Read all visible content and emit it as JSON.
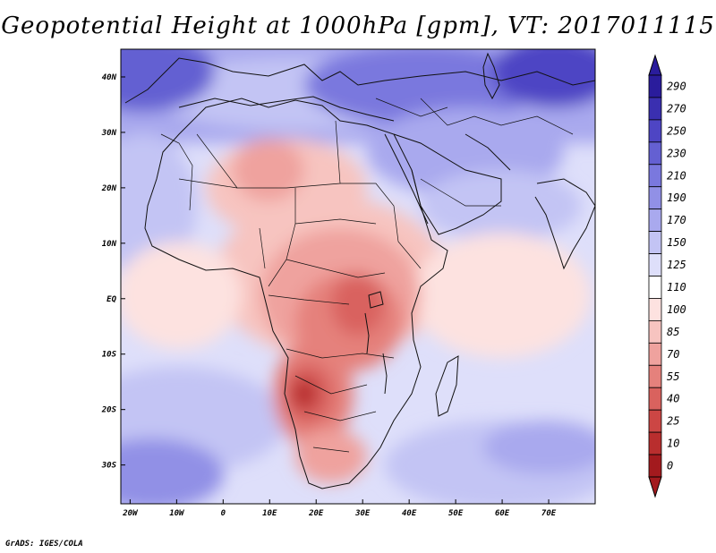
{
  "title": "Geopotential Height at 1000hPa [gpm], VT: 2017011115",
  "footer": "GrADS: IGES/COLA",
  "variable": "Geopotential Height",
  "level": "1000hPa",
  "units": "gpm",
  "valid_time": "2017011115",
  "map_extent": {
    "lon": [
      -22,
      80
    ],
    "lat": [
      -37,
      45
    ]
  },
  "lat_ticks": [
    {
      "value": 40,
      "label": "40N"
    },
    {
      "value": 30,
      "label": "30N"
    },
    {
      "value": 20,
      "label": "20N"
    },
    {
      "value": 10,
      "label": "10N"
    },
    {
      "value": 0,
      "label": "EQ"
    },
    {
      "value": -10,
      "label": "10S"
    },
    {
      "value": -20,
      "label": "20S"
    },
    {
      "value": -30,
      "label": "30S"
    }
  ],
  "lon_ticks": [
    {
      "value": -20,
      "label": "20W"
    },
    {
      "value": -10,
      "label": "10W"
    },
    {
      "value": 0,
      "label": "0"
    },
    {
      "value": 10,
      "label": "10E"
    },
    {
      "value": 20,
      "label": "20E"
    },
    {
      "value": 30,
      "label": "30E"
    },
    {
      "value": 40,
      "label": "40E"
    },
    {
      "value": 50,
      "label": "50E"
    },
    {
      "value": 60,
      "label": "60E"
    },
    {
      "value": 70,
      "label": "70E"
    }
  ],
  "colorbar": {
    "labels": [
      "290",
      "270",
      "250",
      "230",
      "210",
      "190",
      "170",
      "150",
      "125",
      "110",
      "100",
      "85",
      "70",
      "55",
      "40",
      "25",
      "10",
      "0"
    ],
    "colors_top_to_bottom": [
      "#2A1C9C",
      "#3A2FB0",
      "#4E45C4",
      "#6460D2",
      "#7A78DE",
      "#9190E6",
      "#A9A9EE",
      "#C3C4F4",
      "#DEDFFA",
      "#FFFFFF",
      "#FDE2E0",
      "#F7C4C0",
      "#EFA29E",
      "#E5817C",
      "#D9625E",
      "#CC4644",
      "#B92E2E",
      "#A31A1E"
    ]
  }
}
